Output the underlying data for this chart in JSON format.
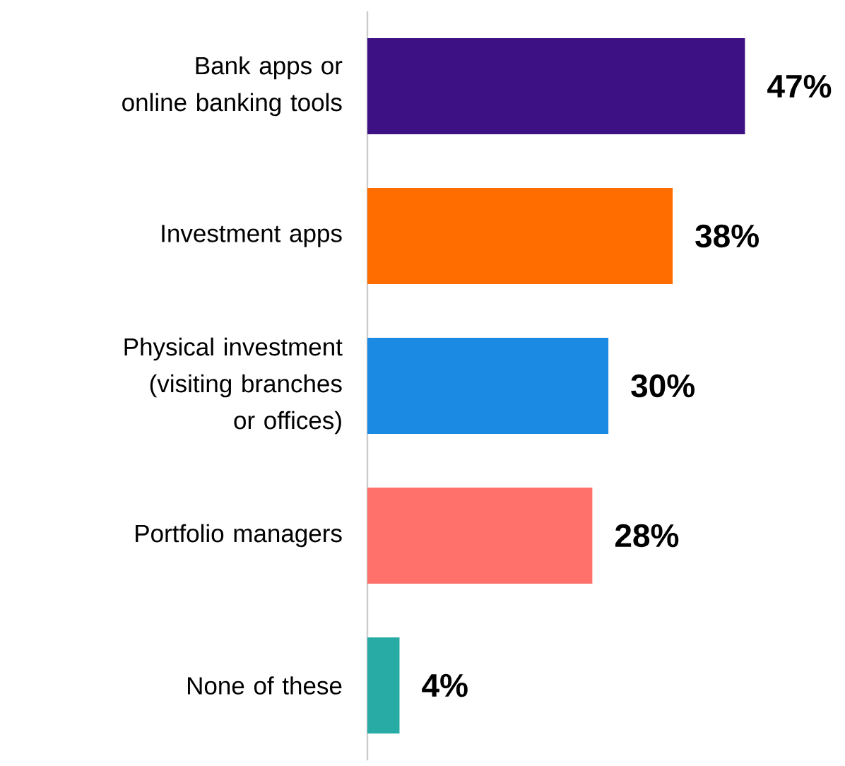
{
  "chart_data": {
    "type": "bar",
    "orientation": "horizontal",
    "categories": [
      "Bank apps or online banking tools",
      "Investment apps",
      "Physical investment (visiting branches or offices)",
      "Portfolio managers",
      "None of these"
    ],
    "values": [
      47,
      38,
      30,
      28,
      4
    ],
    "colors": [
      "#3d1083",
      "#ff6d00",
      "#1a8ae2",
      "#ff716a",
      "#29aba5"
    ],
    "value_labels": [
      "47%",
      "38%",
      "30%",
      "28%",
      "4%"
    ]
  }
}
